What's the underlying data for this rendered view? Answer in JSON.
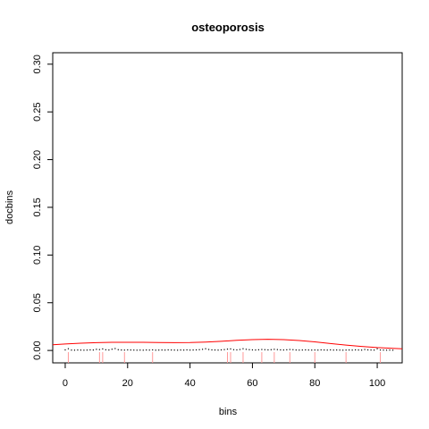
{
  "chart_data": {
    "type": "scatter",
    "title": "osteoporosis",
    "xlabel": "bins",
    "ylabel": "docbins",
    "xlim": [
      -4,
      108
    ],
    "ylim": [
      -0.013,
      0.312
    ],
    "x_ticks": [
      0,
      20,
      40,
      60,
      80,
      100
    ],
    "x_tick_labels": [
      "0",
      "20",
      "40",
      "60",
      "80",
      "100"
    ],
    "y_ticks": [
      0.0,
      0.05,
      0.1,
      0.15,
      0.2,
      0.25,
      0.3
    ],
    "y_tick_labels": [
      "0.00",
      "0.05",
      "0.10",
      "0.15",
      "0.20",
      "0.25",
      "0.30"
    ],
    "grid": false,
    "colors": {
      "points": "#000000",
      "curve": "#ff0000",
      "rug": "#ff9999"
    },
    "points": {
      "x": [
        0,
        1,
        2,
        3,
        4,
        5,
        6,
        7,
        8,
        9,
        10,
        11,
        12,
        13,
        14,
        15,
        16,
        17,
        18,
        19,
        20,
        21,
        22,
        23,
        24,
        25,
        26,
        27,
        28,
        29,
        30,
        31,
        32,
        33,
        34,
        35,
        36,
        37,
        38,
        39,
        40,
        41,
        42,
        43,
        44,
        45,
        46,
        47,
        48,
        49,
        50,
        51,
        52,
        53,
        54,
        55,
        56,
        57,
        58,
        59,
        60,
        61,
        62,
        63,
        64,
        65,
        66,
        67,
        68,
        69,
        70,
        71,
        72,
        73,
        74,
        75,
        76,
        77,
        78,
        79,
        80,
        81,
        82,
        83,
        84,
        85,
        86,
        87,
        88,
        89,
        90,
        91,
        92,
        93,
        94,
        95,
        96,
        97,
        98,
        99,
        100,
        101,
        102,
        103,
        104,
        105
      ],
      "y": [
        0.0006,
        0.0018,
        0.0004,
        0.0003,
        0.0005,
        0.0004,
        0.0003,
        0.0004,
        0.0006,
        0.0005,
        0.0012,
        0.0009,
        0.0016,
        0.0007,
        0.0005,
        0.0013,
        0.002,
        0.0008,
        0.0005,
        0.0004,
        0.0006,
        0.0005,
        0.0004,
        0.0003,
        0.0004,
        0.0003,
        0.0005,
        0.0004,
        0.0006,
        0.0003,
        0.0004,
        0.0005,
        0.0004,
        0.0006,
        0.0005,
        0.0004,
        0.0003,
        0.0005,
        0.0004,
        0.0006,
        0.0004,
        0.0005,
        0.0006,
        0.0008,
        0.0012,
        0.0018,
        0.001,
        0.0006,
        0.0005,
        0.0004,
        0.0006,
        0.0009,
        0.0014,
        0.0016,
        0.0008,
        0.0006,
        0.001,
        0.0018,
        0.0012,
        0.0008,
        0.0006,
        0.0005,
        0.0007,
        0.001,
        0.0008,
        0.0006,
        0.0008,
        0.0012,
        0.0009,
        0.0006,
        0.0005,
        0.0007,
        0.001,
        0.0008,
        0.0005,
        0.0004,
        0.0005,
        0.0006,
        0.0005,
        0.0004,
        0.0005,
        0.0004,
        0.0006,
        0.0005,
        0.0004,
        0.0006,
        0.0004,
        0.0005,
        0.0004,
        0.0003,
        0.0004,
        0.0005,
        0.0004,
        0.0006,
        0.0005,
        0.0004,
        0.001,
        0.0006,
        0.0005,
        0.0004,
        0.0018,
        0.0005,
        0.0004,
        0.0003,
        0.0004,
        0.0003
      ]
    },
    "density_curve": {
      "x": [
        -4,
        0,
        5,
        10,
        15,
        20,
        25,
        30,
        35,
        40,
        45,
        50,
        55,
        60,
        65,
        70,
        75,
        80,
        85,
        90,
        95,
        100,
        105,
        108
      ],
      "y": [
        0.006,
        0.0068,
        0.0076,
        0.0082,
        0.0085,
        0.0086,
        0.0085,
        0.0083,
        0.0082,
        0.0083,
        0.0088,
        0.0096,
        0.0106,
        0.0114,
        0.0117,
        0.0114,
        0.0104,
        0.009,
        0.0073,
        0.0056,
        0.0042,
        0.003,
        0.0022,
        0.0018
      ]
    },
    "rug": {
      "x": [
        1,
        11,
        12,
        19,
        28,
        52,
        53,
        57,
        63,
        67,
        72,
        80,
        90,
        101
      ]
    }
  }
}
